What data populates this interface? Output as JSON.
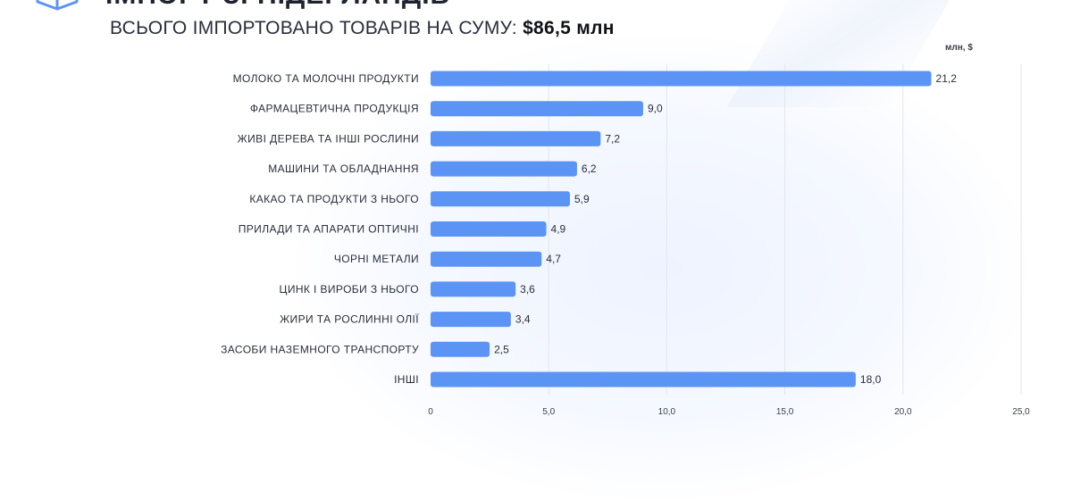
{
  "header": {
    "title_cut": "ІМПОРТ ЗІ НІДЕРЛАНДІВ",
    "subtitle_prefix": "ВСЬОГО ІМПОРТОВАНО ТОВАРІВ НА СУМУ:",
    "subtitle_amount": "$86,5 млн",
    "logo_icon": "box-logo-icon"
  },
  "colors": {
    "bar": "#5b94f5",
    "grid": "#e3e6ec",
    "text": "#2a2e3a"
  },
  "chart_data": {
    "type": "bar",
    "orientation": "horizontal",
    "unit_label": "млн, $",
    "categories": [
      "МОЛОКО ТА МОЛОЧНІ ПРОДУКТИ",
      "ФАРМАЦЕВТИЧНА ПРОДУКЦІЯ",
      "ЖИВІ ДЕРЕВА ТА ІНШІ РОСЛИНИ",
      "МАШИНИ ТА ОБЛАДНАННЯ",
      "КАКАО ТА ПРОДУКТИ З НЬОГО",
      "ПРИЛАДИ ТА АПАРАТИ ОПТИЧНІ",
      "ЧОРНІ МЕТАЛИ",
      "ЦИНК І ВИРОБИ З НЬОГО",
      "ЖИРИ ТА РОСЛИННІ ОЛІЇ",
      "ЗАСОБИ НАЗЕМНОГО ТРАНСПОРТУ",
      "ІНШІ"
    ],
    "values": [
      21.2,
      9.0,
      7.2,
      6.2,
      5.9,
      4.9,
      4.7,
      3.6,
      3.4,
      2.5,
      18.0
    ],
    "value_labels": [
      "21,2",
      "9,0",
      "7,2",
      "6,2",
      "5,9",
      "4,9",
      "4,7",
      "3,6",
      "3,4",
      "2,5",
      "18,0"
    ],
    "xlim": [
      0,
      25
    ],
    "xticks": [
      0,
      5,
      10,
      15,
      20,
      25
    ],
    "xtick_labels": [
      "0",
      "5,0",
      "10,0",
      "15,0",
      "20,0",
      "25,0"
    ],
    "grid": true,
    "legend": "none"
  }
}
